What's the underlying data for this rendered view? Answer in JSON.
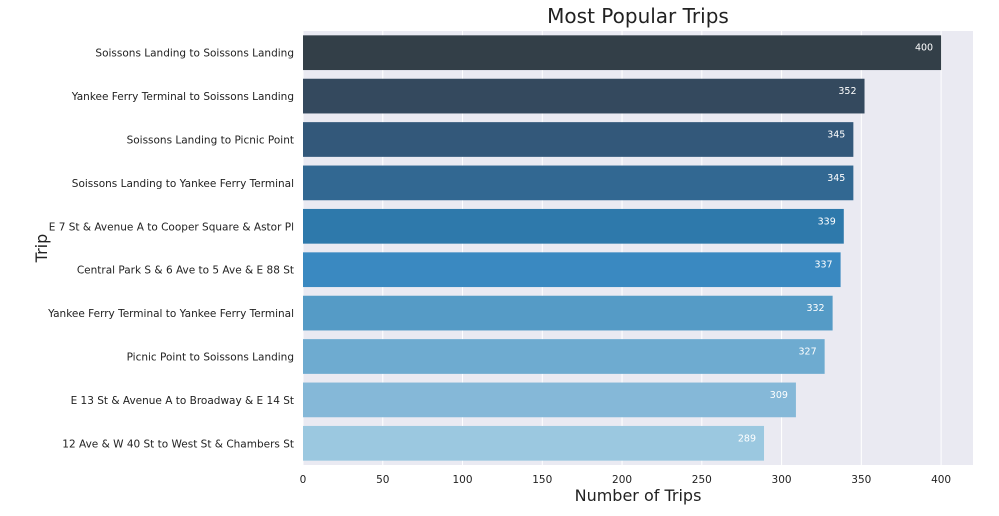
{
  "chart_data": {
    "type": "bar",
    "orientation": "horizontal",
    "title": "Most Popular Trips",
    "xlabel": "Number of Trips",
    "ylabel": "Trip",
    "categories": [
      "Soissons Landing to Soissons Landing",
      "Yankee Ferry Terminal to Soissons Landing",
      "Soissons Landing to Picnic Point",
      "Soissons Landing to Yankee Ferry Terminal",
      "E 7 St & Avenue A to Cooper Square & Astor Pl",
      "Central Park S & 6 Ave to 5 Ave & E 88 St",
      "Yankee Ferry Terminal to Yankee Ferry Terminal",
      "Picnic Point to Soissons Landing",
      "E 13 St & Avenue A to Broadway & E 14 St",
      "12 Ave & W 40 St to West St & Chambers St"
    ],
    "values": [
      400,
      352,
      345,
      345,
      339,
      337,
      332,
      327,
      309,
      289
    ],
    "xlim": [
      0,
      420
    ],
    "xticks": [
      0,
      50,
      100,
      150,
      200,
      250,
      300,
      350,
      400
    ],
    "grid": true,
    "background": "#EAEAF2",
    "bar_colors": [
      "#333F48",
      "#34495E",
      "#33587A",
      "#326892",
      "#2E79AB",
      "#3A89C1",
      "#559BC6",
      "#6EABD0",
      "#85B8D8",
      "#9BC8E0"
    ]
  }
}
